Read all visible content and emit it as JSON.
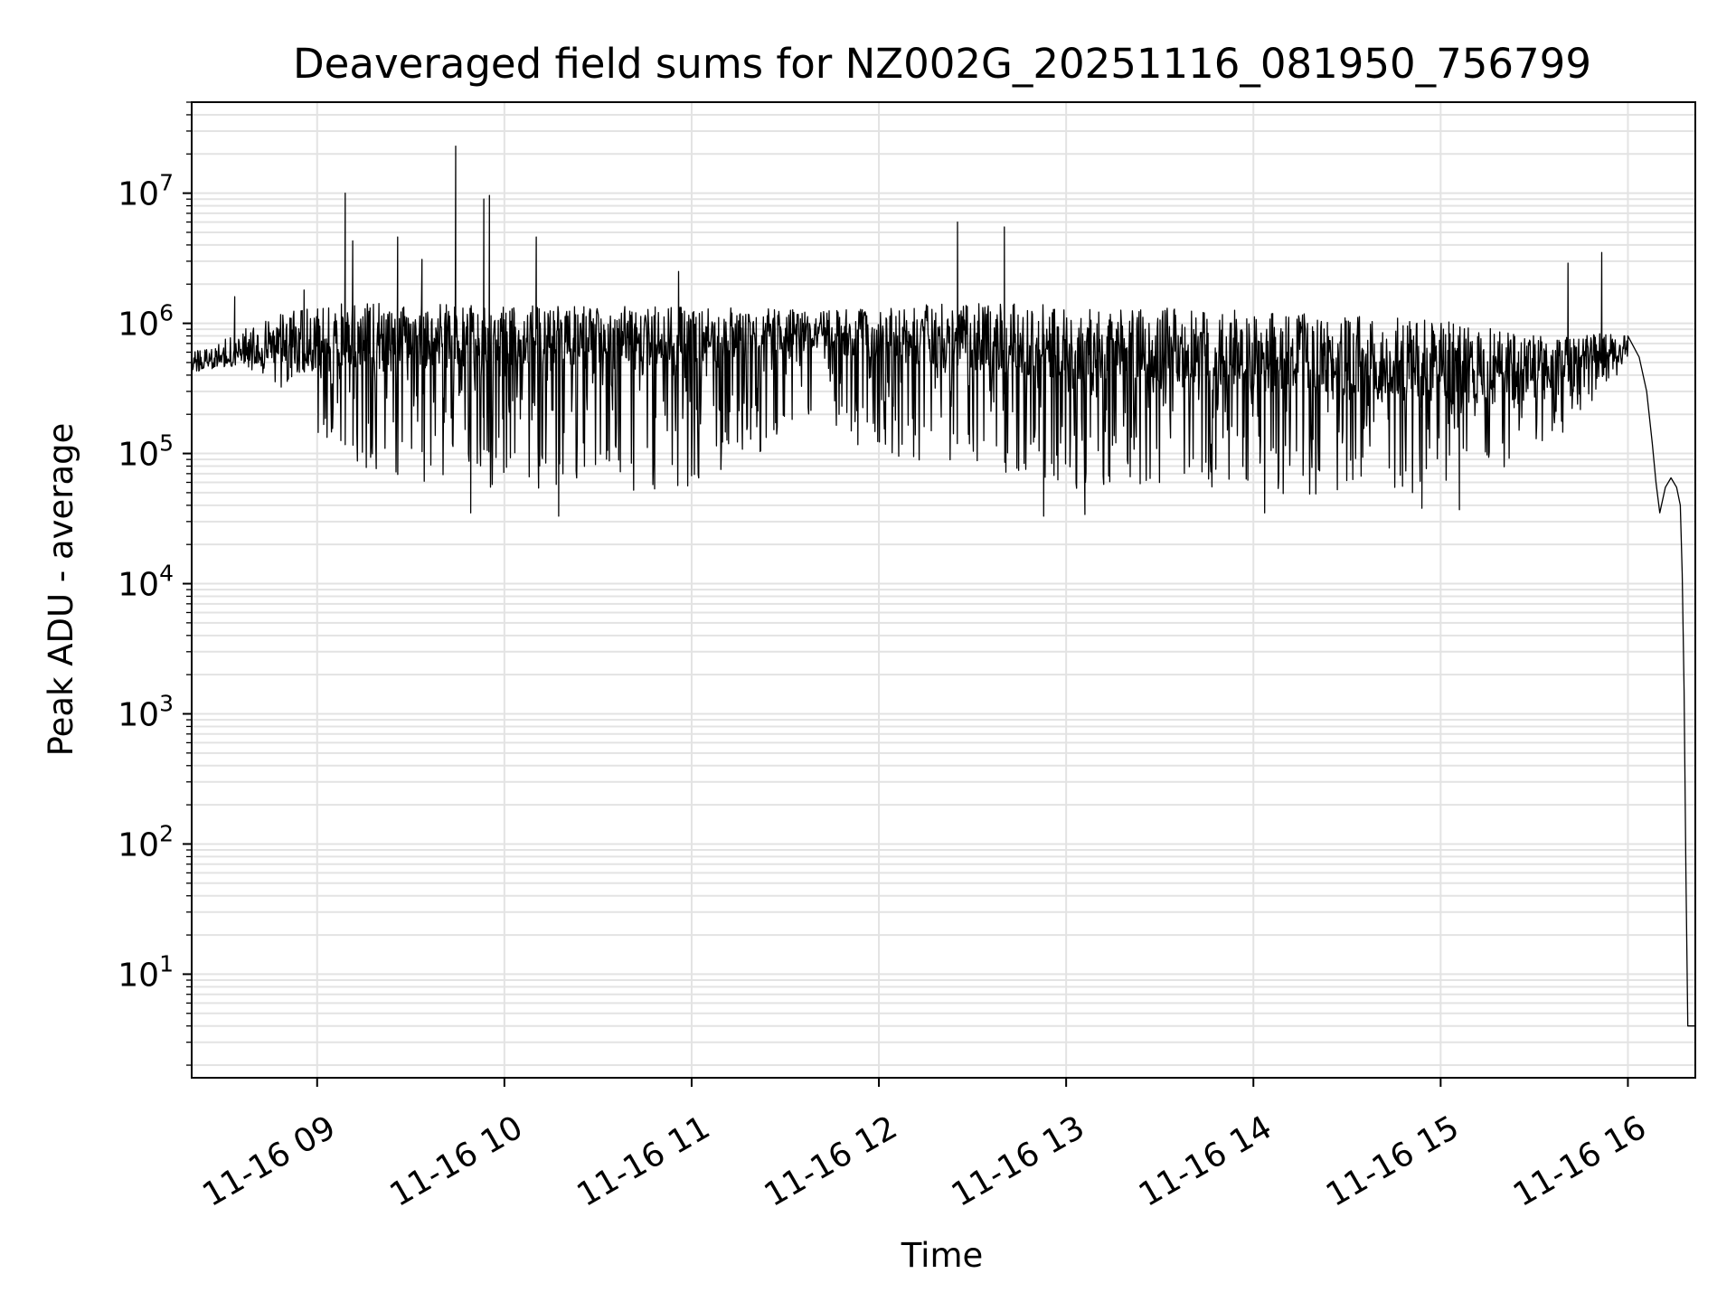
{
  "chart_data": {
    "type": "line",
    "title": "Deaveraged field sums for NZ002G_20251116_081950_756799",
    "xlabel": "Time",
    "ylabel": "Peak ADU - average",
    "yscale": "log",
    "ylim": [
      1.6,
      50000000
    ],
    "xlim_hours": [
      8.33,
      16.36
    ],
    "grid": true,
    "x_tick_labels": [
      "11-16 09",
      "11-16 10",
      "11-16 11",
      "11-16 12",
      "11-16 13",
      "11-16 14",
      "11-16 15",
      "11-16 16"
    ],
    "x_tick_hours": [
      9,
      10,
      11,
      12,
      13,
      14,
      15,
      16
    ],
    "y_tick_labels": [
      {
        "base": "10",
        "exp": "1",
        "value": 10
      },
      {
        "base": "10",
        "exp": "2",
        "value": 100
      },
      {
        "base": "10",
        "exp": "3",
        "value": 1000
      },
      {
        "base": "10",
        "exp": "4",
        "value": 10000
      },
      {
        "base": "10",
        "exp": "5",
        "value": 100000
      },
      {
        "base": "10",
        "exp": "6",
        "value": 1000000
      },
      {
        "base": "10",
        "exp": "7",
        "value": 10000000
      }
    ],
    "series": [
      {
        "name": "Peak ADU - average",
        "color": "#000000",
        "envelope": [
          {
            "t": 8.33,
            "base": 500000,
            "upper": 600000,
            "lower": 420000
          },
          {
            "t": 8.6,
            "base": 650000,
            "upper": 900000,
            "lower": 500000
          },
          {
            "t": 8.85,
            "base": 750000,
            "upper": 1300000,
            "lower": 250000
          },
          {
            "t": 9.2,
            "base": 800000,
            "upper": 1500000,
            "lower": 70000
          },
          {
            "t": 10.0,
            "base": 800000,
            "upper": 1400000,
            "lower": 50000
          },
          {
            "t": 11.0,
            "base": 800000,
            "upper": 1400000,
            "lower": 50000
          },
          {
            "t": 11.6,
            "base": 900000,
            "upper": 1300000,
            "lower": 150000
          },
          {
            "t": 12.4,
            "base": 800000,
            "upper": 1500000,
            "lower": 70000
          },
          {
            "t": 13.2,
            "base": 700000,
            "upper": 1400000,
            "lower": 50000
          },
          {
            "t": 14.0,
            "base": 600000,
            "upper": 1300000,
            "lower": 45000
          },
          {
            "t": 15.0,
            "base": 500000,
            "upper": 1100000,
            "lower": 50000
          },
          {
            "t": 15.4,
            "base": 450000,
            "upper": 900000,
            "lower": 70000
          },
          {
            "t": 15.7,
            "base": 550000,
            "upper": 800000,
            "lower": 150000
          },
          {
            "t": 16.0,
            "base": 700000,
            "upper": 900000,
            "lower": 450000
          }
        ],
        "spikes": [
          {
            "t": 8.56,
            "value": 1600000
          },
          {
            "t": 8.93,
            "value": 1800000
          },
          {
            "t": 9.15,
            "value": 10000000
          },
          {
            "t": 9.19,
            "value": 4300000
          },
          {
            "t": 9.43,
            "value": 4600000
          },
          {
            "t": 9.56,
            "value": 3100000
          },
          {
            "t": 9.74,
            "value": 23000000
          },
          {
            "t": 9.89,
            "value": 9000000
          },
          {
            "t": 9.92,
            "value": 9600000
          },
          {
            "t": 10.17,
            "value": 4600000
          },
          {
            "t": 10.93,
            "value": 2500000
          },
          {
            "t": 12.42,
            "value": 6000000
          },
          {
            "t": 12.67,
            "value": 5500000
          },
          {
            "t": 15.68,
            "value": 2900000
          },
          {
            "t": 15.86,
            "value": 3500000
          }
        ],
        "dips": [
          {
            "t": 9.82,
            "value": 35000
          },
          {
            "t": 10.29,
            "value": 33000
          },
          {
            "t": 12.88,
            "value": 33000
          },
          {
            "t": 13.1,
            "value": 34000
          },
          {
            "t": 14.06,
            "value": 35000
          },
          {
            "t": 14.9,
            "value": 38000
          },
          {
            "t": 15.1,
            "value": 37000
          }
        ],
        "tail": [
          {
            "t": 16.0,
            "value": 800000
          },
          {
            "t": 16.06,
            "value": 550000
          },
          {
            "t": 16.1,
            "value": 300000
          },
          {
            "t": 16.13,
            "value": 120000
          },
          {
            "t": 16.15,
            "value": 60000
          },
          {
            "t": 16.17,
            "value": 35000
          },
          {
            "t": 16.2,
            "value": 55000
          },
          {
            "t": 16.23,
            "value": 65000
          },
          {
            "t": 16.26,
            "value": 55000
          },
          {
            "t": 16.28,
            "value": 40000
          },
          {
            "t": 16.29,
            "value": 12000
          },
          {
            "t": 16.3,
            "value": 1500
          },
          {
            "t": 16.31,
            "value": 60
          },
          {
            "t": 16.32,
            "value": 4
          },
          {
            "t": 16.36,
            "value": 4
          }
        ]
      }
    ]
  }
}
